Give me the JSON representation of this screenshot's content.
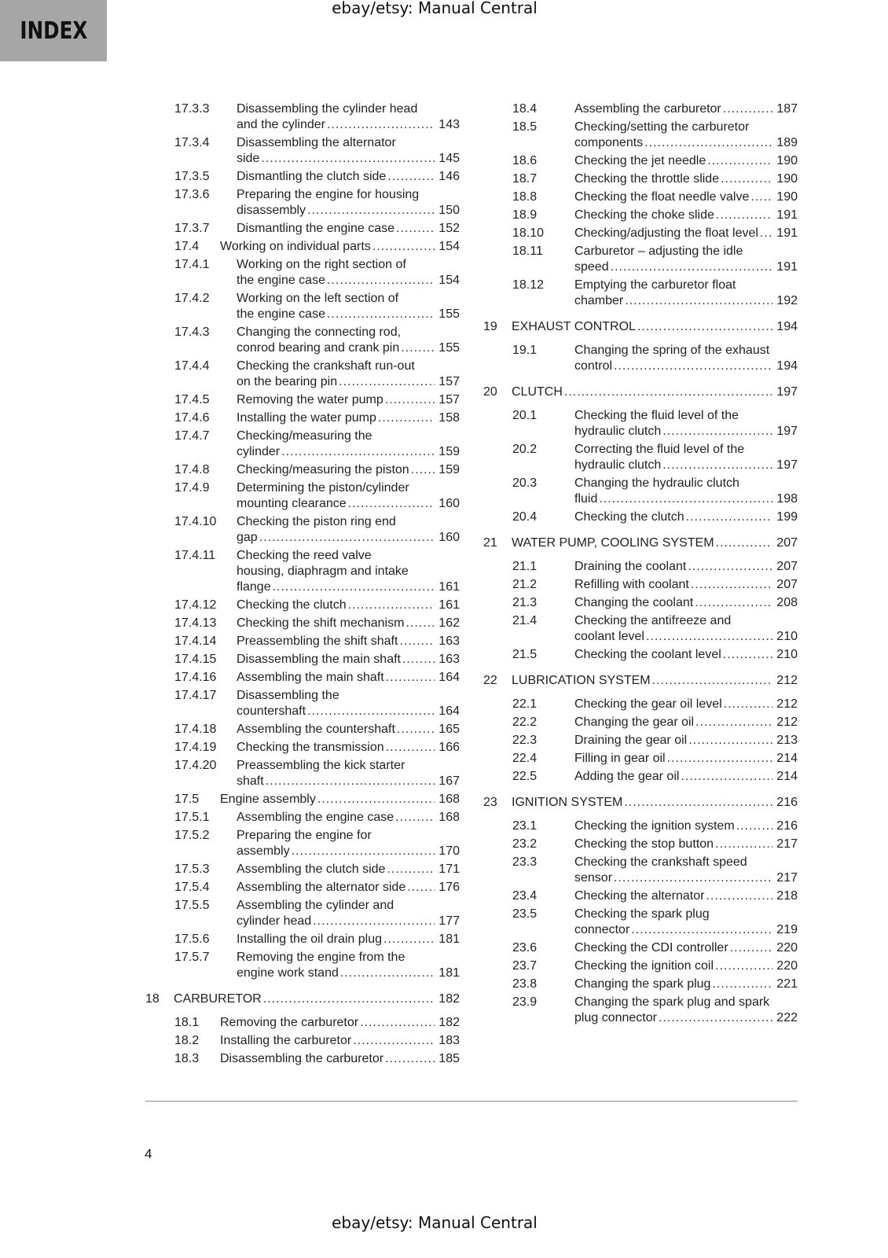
{
  "header": {
    "index_label": "INDEX",
    "watermark_top": "ebay/etsy: Manual Central"
  },
  "footer": {
    "page_number": "4",
    "watermark_bottom": "ebay/etsy: Manual Central"
  },
  "colors": {
    "index_box": "#a6a6a6"
  },
  "columns": [
    {
      "entries": [
        {
          "num": "17.3.3",
          "lines": [
            "Disassembling the cylinder head",
            "and the cylinder"
          ],
          "page": "143",
          "level": "l3"
        },
        {
          "num": "17.3.4",
          "lines": [
            "Disassembling the alternator",
            "side"
          ],
          "page": "145",
          "level": "l3"
        },
        {
          "num": "17.3.5",
          "lines": [
            "Dismantling the clutch side"
          ],
          "page": "146",
          "level": "l3"
        },
        {
          "num": "17.3.6",
          "lines": [
            "Preparing the engine for housing",
            "disassembly"
          ],
          "page": "150",
          "level": "l3"
        },
        {
          "num": "17.3.7",
          "lines": [
            "Dismantling the engine case"
          ],
          "page": "152",
          "level": "l3"
        },
        {
          "num": "17.4",
          "lines": [
            "Working on individual parts"
          ],
          "page": "154",
          "level": "l2"
        },
        {
          "num": "17.4.1",
          "lines": [
            "Working on the right section of",
            "the engine case"
          ],
          "page": "154",
          "level": "l3"
        },
        {
          "num": "17.4.2",
          "lines": [
            "Working on the left section of",
            "the engine case"
          ],
          "page": "155",
          "level": "l3"
        },
        {
          "num": "17.4.3",
          "lines": [
            "Changing the connecting rod,",
            "conrod bearing and crank pin"
          ],
          "page": "155",
          "level": "l3"
        },
        {
          "num": "17.4.4",
          "lines": [
            "Checking the crankshaft run-out",
            "on the bearing pin"
          ],
          "page": "157",
          "level": "l3"
        },
        {
          "num": "17.4.5",
          "lines": [
            "Removing the water pump"
          ],
          "page": "157",
          "level": "l3"
        },
        {
          "num": "17.4.6",
          "lines": [
            "Installing the water pump"
          ],
          "page": "158",
          "level": "l3"
        },
        {
          "num": "17.4.7",
          "lines": [
            "Checking/measuring the",
            "cylinder"
          ],
          "page": "159",
          "level": "l3"
        },
        {
          "num": "17.4.8",
          "lines": [
            "Checking/measuring the piston"
          ],
          "page": "159",
          "level": "l3"
        },
        {
          "num": "17.4.9",
          "lines": [
            "Determining the piston/cylinder",
            "mounting clearance"
          ],
          "page": "160",
          "level": "l3"
        },
        {
          "num": "17.4.10",
          "lines": [
            "Checking the piston ring end",
            "gap"
          ],
          "page": "160",
          "level": "l3"
        },
        {
          "num": "17.4.11",
          "lines": [
            "Checking the reed valve",
            "housing, diaphragm and intake",
            "flange"
          ],
          "page": "161",
          "level": "l3"
        },
        {
          "num": "17.4.12",
          "lines": [
            "Checking the clutch"
          ],
          "page": "161",
          "level": "l3"
        },
        {
          "num": "17.4.13",
          "lines": [
            "Checking the shift mechanism"
          ],
          "page": "162",
          "level": "l3"
        },
        {
          "num": "17.4.14",
          "lines": [
            "Preassembling the shift shaft"
          ],
          "page": "163",
          "level": "l3"
        },
        {
          "num": "17.4.15",
          "lines": [
            "Disassembling the main shaft"
          ],
          "page": "163",
          "level": "l3"
        },
        {
          "num": "17.4.16",
          "lines": [
            "Assembling the main shaft"
          ],
          "page": "164",
          "level": "l3"
        },
        {
          "num": "17.4.17",
          "lines": [
            "Disassembling the",
            "countershaft"
          ],
          "page": "164",
          "level": "l3"
        },
        {
          "num": "17.4.18",
          "lines": [
            "Assembling the countershaft"
          ],
          "page": "165",
          "level": "l3"
        },
        {
          "num": "17.4.19",
          "lines": [
            "Checking the transmission"
          ],
          "page": "166",
          "level": "l3"
        },
        {
          "num": "17.4.20",
          "lines": [
            "Preassembling the kick starter",
            "shaft"
          ],
          "page": "167",
          "level": "l3"
        },
        {
          "num": "17.5",
          "lines": [
            "Engine assembly"
          ],
          "page": "168",
          "level": "l2"
        },
        {
          "num": "17.5.1",
          "lines": [
            "Assembling the engine case"
          ],
          "page": "168",
          "level": "l3"
        },
        {
          "num": "17.5.2",
          "lines": [
            "Preparing the engine for",
            "assembly"
          ],
          "page": "170",
          "level": "l3"
        },
        {
          "num": "17.5.3",
          "lines": [
            "Assembling the clutch side"
          ],
          "page": "171",
          "level": "l3"
        },
        {
          "num": "17.5.4",
          "lines": [
            "Assembling the alternator side"
          ],
          "page": "176",
          "level": "l3"
        },
        {
          "num": "17.5.5",
          "lines": [
            "Assembling the cylinder and",
            "cylinder head"
          ],
          "page": "177",
          "level": "l3"
        },
        {
          "num": "17.5.6",
          "lines": [
            "Installing the oil drain plug"
          ],
          "page": "181",
          "level": "l3"
        },
        {
          "num": "17.5.7",
          "lines": [
            "Removing the engine from the",
            "engine work stand"
          ],
          "page": "181",
          "level": "l3"
        },
        {
          "num": "18",
          "lines": [
            "CARBURETOR"
          ],
          "page": "182",
          "level": "chapter"
        },
        {
          "num": "18.1",
          "lines": [
            "Removing the carburetor"
          ],
          "page": "182",
          "level": "l2"
        },
        {
          "num": "18.2",
          "lines": [
            "Installing the carburetor"
          ],
          "page": "183",
          "level": "l2"
        },
        {
          "num": "18.3",
          "lines": [
            "Disassembling the carburetor"
          ],
          "page": "185",
          "level": "l2"
        }
      ]
    },
    {
      "entries": [
        {
          "num": "18.4",
          "lines": [
            "Assembling the carburetor"
          ],
          "page": "187",
          "level": "l3"
        },
        {
          "num": "18.5",
          "lines": [
            "Checking/setting the carburetor",
            "components"
          ],
          "page": "189",
          "level": "l3"
        },
        {
          "num": "18.6",
          "lines": [
            "Checking the jet needle"
          ],
          "page": "190",
          "level": "l3"
        },
        {
          "num": "18.7",
          "lines": [
            "Checking the throttle slide"
          ],
          "page": "190",
          "level": "l3"
        },
        {
          "num": "18.8",
          "lines": [
            "Checking the float needle valve"
          ],
          "page": "190",
          "level": "l3"
        },
        {
          "num": "18.9",
          "lines": [
            "Checking the choke slide"
          ],
          "page": "191",
          "level": "l3"
        },
        {
          "num": "18.10",
          "lines": [
            "Checking/adjusting the float level"
          ],
          "page": "191",
          "level": "l3"
        },
        {
          "num": "18.11",
          "lines": [
            "Carburetor – adjusting the idle",
            "speed"
          ],
          "page": "191",
          "level": "l3"
        },
        {
          "num": "18.12",
          "lines": [
            "Emptying the carburetor float",
            "chamber"
          ],
          "page": "192",
          "level": "l3"
        },
        {
          "num": "19",
          "lines": [
            "EXHAUST CONTROL"
          ],
          "page": "194",
          "level": "chapter"
        },
        {
          "num": "19.1",
          "lines": [
            "Changing the spring of the exhaust",
            "control"
          ],
          "page": "194",
          "level": "l3"
        },
        {
          "num": "20",
          "lines": [
            "CLUTCH"
          ],
          "page": "197",
          "level": "chapter"
        },
        {
          "num": "20.1",
          "lines": [
            "Checking the fluid level of the",
            "hydraulic clutch"
          ],
          "page": "197",
          "level": "l3"
        },
        {
          "num": "20.2",
          "lines": [
            "Correcting the fluid level of the",
            "hydraulic clutch"
          ],
          "page": "197",
          "level": "l3"
        },
        {
          "num": "20.3",
          "lines": [
            "Changing the hydraulic clutch",
            "fluid"
          ],
          "page": "198",
          "level": "l3"
        },
        {
          "num": "20.4",
          "lines": [
            "Checking the clutch"
          ],
          "page": "199",
          "level": "l3"
        },
        {
          "num": "21",
          "lines": [
            "WATER PUMP, COOLING SYSTEM"
          ],
          "page": "207",
          "level": "chapter"
        },
        {
          "num": "21.1",
          "lines": [
            "Draining the coolant"
          ],
          "page": "207",
          "level": "l3"
        },
        {
          "num": "21.2",
          "lines": [
            "Refilling with coolant"
          ],
          "page": "207",
          "level": "l3"
        },
        {
          "num": "21.3",
          "lines": [
            "Changing the coolant"
          ],
          "page": "208",
          "level": "l3"
        },
        {
          "num": "21.4",
          "lines": [
            "Checking the antifreeze and",
            "coolant level"
          ],
          "page": "210",
          "level": "l3"
        },
        {
          "num": "21.5",
          "lines": [
            "Checking the coolant level"
          ],
          "page": "210",
          "level": "l3"
        },
        {
          "num": "22",
          "lines": [
            "LUBRICATION SYSTEM"
          ],
          "page": "212",
          "level": "chapter"
        },
        {
          "num": "22.1",
          "lines": [
            "Checking the gear oil level"
          ],
          "page": "212",
          "level": "l3"
        },
        {
          "num": "22.2",
          "lines": [
            "Changing the gear oil"
          ],
          "page": "212",
          "level": "l3"
        },
        {
          "num": "22.3",
          "lines": [
            "Draining the gear oil"
          ],
          "page": "213",
          "level": "l3"
        },
        {
          "num": "22.4",
          "lines": [
            "Filling in gear oil"
          ],
          "page": "214",
          "level": "l3"
        },
        {
          "num": "22.5",
          "lines": [
            "Adding the gear oil"
          ],
          "page": "214",
          "level": "l3"
        },
        {
          "num": "23",
          "lines": [
            "IGNITION SYSTEM"
          ],
          "page": "216",
          "level": "chapter"
        },
        {
          "num": "23.1",
          "lines": [
            "Checking the ignition system"
          ],
          "page": "216",
          "level": "l3"
        },
        {
          "num": "23.2",
          "lines": [
            "Checking the stop button"
          ],
          "page": "217",
          "level": "l3"
        },
        {
          "num": "23.3",
          "lines": [
            "Checking the crankshaft speed",
            "sensor"
          ],
          "page": "217",
          "level": "l3"
        },
        {
          "num": "23.4",
          "lines": [
            "Checking the alternator"
          ],
          "page": "218",
          "level": "l3"
        },
        {
          "num": "23.5",
          "lines": [
            "Checking the spark plug",
            "connector"
          ],
          "page": "219",
          "level": "l3"
        },
        {
          "num": "23.6",
          "lines": [
            "Checking the CDI controller"
          ],
          "page": "220",
          "level": "l3"
        },
        {
          "num": "23.7",
          "lines": [
            "Checking the ignition coil"
          ],
          "page": "220",
          "level": "l3"
        },
        {
          "num": "23.8",
          "lines": [
            "Changing the spark plug"
          ],
          "page": "221",
          "level": "l3"
        },
        {
          "num": "23.9",
          "lines": [
            "Changing the spark plug and spark",
            "plug connector"
          ],
          "page": "222",
          "level": "l3"
        }
      ]
    }
  ]
}
